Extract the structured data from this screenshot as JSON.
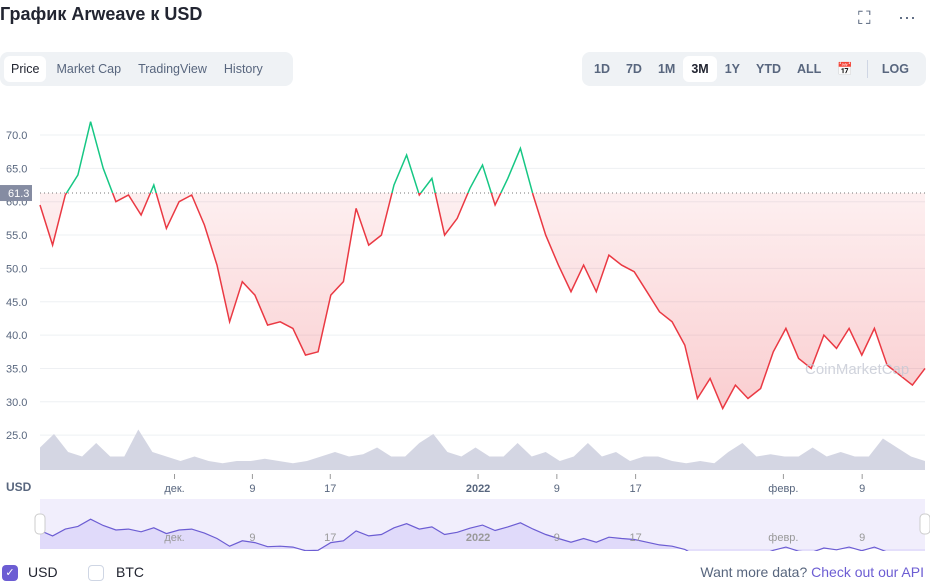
{
  "header": {
    "title": "График Arweave к USD",
    "fullscreen_icon": "expand-icon",
    "more_icon": "ellipsis-icon"
  },
  "tabs": [
    {
      "label": "Price",
      "active": true
    },
    {
      "label": "Market Cap"
    },
    {
      "label": "TradingView"
    },
    {
      "label": "History"
    }
  ],
  "ranges": [
    {
      "label": "1D"
    },
    {
      "label": "7D"
    },
    {
      "label": "1M"
    },
    {
      "label": "3M",
      "active": true
    },
    {
      "label": "1Y"
    },
    {
      "label": "YTD"
    },
    {
      "label": "ALL"
    }
  ],
  "log_label": "LOG",
  "watermark": "CoinMarketCap",
  "currency_label": "USD",
  "colors": {
    "up": "#16c784",
    "down": "#ea3943",
    "accent": "#6c5dd3"
  },
  "chart_data": {
    "type": "line",
    "title": "График Arweave к USD",
    "ylabel": "USD",
    "ylim": [
      21,
      74
    ],
    "yticks": [
      "70.0",
      "65.0",
      "60.0",
      "55.0",
      "50.0",
      "45.0",
      "40.0",
      "35.0",
      "30.0",
      "25.0"
    ],
    "baseline": 61.3,
    "baseline_label": "61.3",
    "xticks": [
      {
        "label": "дек.",
        "t": 0.152
      },
      {
        "label": "9",
        "t": 0.24
      },
      {
        "label": "17",
        "t": 0.328
      },
      {
        "label": "2022",
        "t": 0.495,
        "bold": true
      },
      {
        "label": "9",
        "t": 0.584
      },
      {
        "label": "17",
        "t": 0.673
      },
      {
        "label": "февр.",
        "t": 0.84
      },
      {
        "label": "9",
        "t": 0.929
      }
    ],
    "price": [
      59.5,
      53.5,
      61,
      64,
      72,
      65,
      60,
      61,
      58,
      62.5,
      56,
      60,
      61,
      56.5,
      50.5,
      42,
      48,
      46,
      41.5,
      42,
      41,
      37,
      37.5,
      46,
      48,
      59,
      53.5,
      55,
      62.5,
      67,
      61,
      63.5,
      55,
      57.5,
      62,
      65.5,
      59.5,
      63.5,
      68,
      61,
      55,
      50.5,
      46.5,
      50.5,
      46.5,
      52,
      50.5,
      49.5,
      46.5,
      43.5,
      42,
      38.5,
      30.5,
      33.5,
      29,
      32.5,
      30.5,
      32,
      37.5,
      41,
      36.5,
      35,
      40,
      38,
      41,
      37,
      41,
      35.5,
      34,
      32.5,
      35
    ],
    "volume": [
      0.5,
      0.8,
      0.4,
      0.3,
      0.6,
      0.3,
      0.3,
      0.9,
      0.4,
      0.3,
      0.2,
      0.3,
      0.2,
      0.15,
      0.2,
      0.2,
      0.25,
      0.2,
      0.15,
      0.2,
      0.3,
      0.4,
      0.3,
      0.35,
      0.5,
      0.3,
      0.3,
      0.6,
      0.8,
      0.4,
      0.3,
      0.5,
      0.3,
      0.3,
      0.6,
      0.3,
      0.4,
      0.2,
      0.3,
      0.6,
      0.3,
      0.4,
      0.2,
      0.3,
      0.3,
      0.2,
      0.15,
      0.2,
      0.15,
      0.4,
      0.6,
      0.3,
      0.35,
      0.3,
      0.3,
      0.5,
      0.3,
      0.4,
      0.3,
      0.3,
      0.7,
      0.5,
      0.3,
      0.2
    ]
  },
  "navigator": {
    "xticks": [
      "дек.",
      "9",
      "17",
      "2022",
      "9",
      "17",
      "февр.",
      "9"
    ]
  },
  "footer": {
    "usd": "USD",
    "btc": "BTC",
    "prompt": "Want more data?",
    "api_link": "Check out our API"
  }
}
